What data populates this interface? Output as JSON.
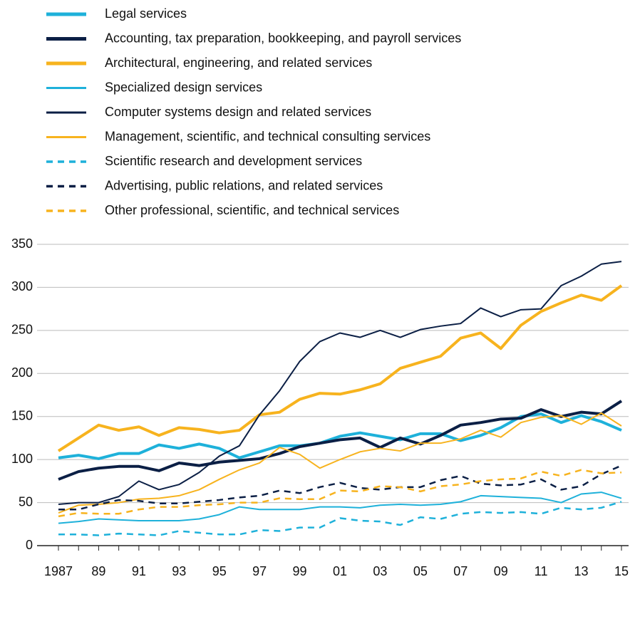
{
  "chart_data": {
    "type": "line",
    "categories": [
      "1987",
      null,
      "89",
      null,
      "91",
      null,
      "93",
      null,
      "95",
      null,
      "97",
      null,
      "99",
      null,
      "01",
      null,
      "03",
      null,
      "05",
      null,
      "07",
      null,
      "09",
      null,
      "11",
      null,
      "13",
      null,
      "15"
    ],
    "ylim": [
      0,
      350
    ],
    "yticks": [
      0,
      50,
      100,
      150,
      200,
      250,
      300,
      350
    ],
    "grid": true,
    "series": [
      {
        "name": "Legal services",
        "color": "#1eb1da",
        "line_width": 4,
        "dash": "solid",
        "values": [
          102,
          105,
          101,
          107,
          107,
          117,
          113,
          118,
          113,
          102,
          109,
          116,
          116,
          119,
          127,
          131,
          127,
          123,
          130,
          130,
          122,
          128,
          137,
          150,
          153,
          143,
          151,
          144,
          134
        ]
      },
      {
        "name": "Accounting, tax preparation, bookkeeping, and payroll services",
        "color": "#0b1f45",
        "line_width": 4,
        "dash": "solid",
        "values": [
          77,
          86,
          90,
          92,
          92,
          87,
          96,
          93,
          97,
          99,
          101,
          107,
          115,
          119,
          123,
          125,
          114,
          125,
          118,
          128,
          140,
          143,
          147,
          148,
          158,
          150,
          155,
          153,
          168
        ]
      },
      {
        "name": "Architectural, engineering, and related services",
        "color": "#f7b31e",
        "line_width": 4,
        "dash": "solid",
        "values": [
          110,
          125,
          140,
          134,
          138,
          128,
          137,
          135,
          131,
          134,
          152,
          155,
          170,
          177,
          176,
          181,
          188,
          206,
          213,
          220,
          241,
          247,
          229,
          256,
          272,
          282,
          291,
          285,
          302
        ]
      },
      {
        "name": "Specialized design services",
        "color": "#1eb1da",
        "line_width": 2,
        "dash": "solid",
        "values": [
          26,
          28,
          31,
          30,
          29,
          29,
          29,
          31,
          36,
          45,
          42,
          42,
          42,
          45,
          45,
          44,
          47,
          48,
          47,
          48,
          51,
          58,
          57,
          56,
          55,
          50,
          60,
          62,
          55
        ]
      },
      {
        "name": "Computer systems design and related services",
        "color": "#0b1f45",
        "line_width": 2,
        "dash": "solid",
        "values": [
          48,
          50,
          50,
          57,
          75,
          65,
          71,
          85,
          104,
          116,
          152,
          180,
          214,
          237,
          247,
          242,
          250,
          242,
          251,
          255,
          258,
          276,
          266,
          274,
          275,
          302,
          313,
          327,
          330
        ]
      },
      {
        "name": "Management, scientific, and technical consulting services",
        "color": "#f7b31e",
        "line_width": 2,
        "dash": "solid",
        "values": [
          38,
          47,
          48,
          50,
          54,
          55,
          58,
          65,
          77,
          88,
          96,
          114,
          106,
          90,
          100,
          109,
          113,
          110,
          119,
          119,
          124,
          134,
          126,
          143,
          149,
          151,
          141,
          154,
          139
        ]
      },
      {
        "name": "Scientific research and development services",
        "color": "#1eb1da",
        "line_width": 2.5,
        "dash": "dashed",
        "values": [
          13,
          13,
          12,
          14,
          13,
          12,
          17,
          15,
          13,
          13,
          18,
          17,
          21,
          21,
          32,
          29,
          28,
          24,
          33,
          31,
          37,
          39,
          38,
          39,
          37,
          44,
          42,
          44,
          51
        ]
      },
      {
        "name": "Advertising, public relations, and related services",
        "color": "#0b1f45",
        "line_width": 2.5,
        "dash": "dashed",
        "values": [
          42,
          42,
          48,
          53,
          52,
          49,
          49,
          51,
          53,
          56,
          58,
          64,
          61,
          68,
          73,
          67,
          65,
          68,
          68,
          76,
          81,
          72,
          70,
          71,
          77,
          65,
          69,
          83,
          93
        ]
      },
      {
        "name": "Other professional, scientific, and technical services",
        "color": "#f7b31e",
        "line_width": 2.5,
        "dash": "dashed",
        "values": [
          34,
          38,
          37,
          37,
          42,
          45,
          45,
          47,
          48,
          50,
          50,
          55,
          54,
          54,
          64,
          63,
          69,
          68,
          63,
          69,
          71,
          75,
          77,
          78,
          86,
          81,
          88,
          84,
          85
        ]
      }
    ]
  }
}
